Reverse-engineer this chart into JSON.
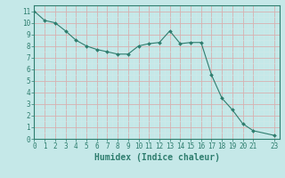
{
  "x": [
    0,
    1,
    2,
    3,
    4,
    5,
    6,
    7,
    8,
    9,
    10,
    11,
    12,
    13,
    14,
    15,
    16,
    17,
    18,
    19,
    20,
    21,
    23
  ],
  "y": [
    11.0,
    10.2,
    10.0,
    9.3,
    8.5,
    8.0,
    7.7,
    7.5,
    7.3,
    7.3,
    8.0,
    8.2,
    8.3,
    9.3,
    8.2,
    8.3,
    8.3,
    5.5,
    3.5,
    2.5,
    1.3,
    0.7,
    0.3
  ],
  "line_color": "#2e7d6e",
  "marker": "D",
  "markersize": 2.0,
  "linewidth": 0.8,
  "bg_color": "#c5e8e8",
  "grid_major_color": "#d8b0b0",
  "grid_minor_color": "#d0e8e8",
  "xlabel": "Humidex (Indice chaleur)",
  "xlim": [
    0,
    23.5
  ],
  "ylim": [
    0,
    11.5
  ],
  "xticks": [
    0,
    1,
    2,
    3,
    4,
    5,
    6,
    7,
    8,
    9,
    10,
    11,
    12,
    13,
    14,
    15,
    16,
    17,
    18,
    19,
    20,
    21,
    23
  ],
  "yticks": [
    0,
    1,
    2,
    3,
    4,
    5,
    6,
    7,
    8,
    9,
    10,
    11
  ],
  "tick_color": "#2e7d6e",
  "label_color": "#2e7d6e",
  "xlabel_fontsize": 7,
  "tick_fontsize": 5.5
}
